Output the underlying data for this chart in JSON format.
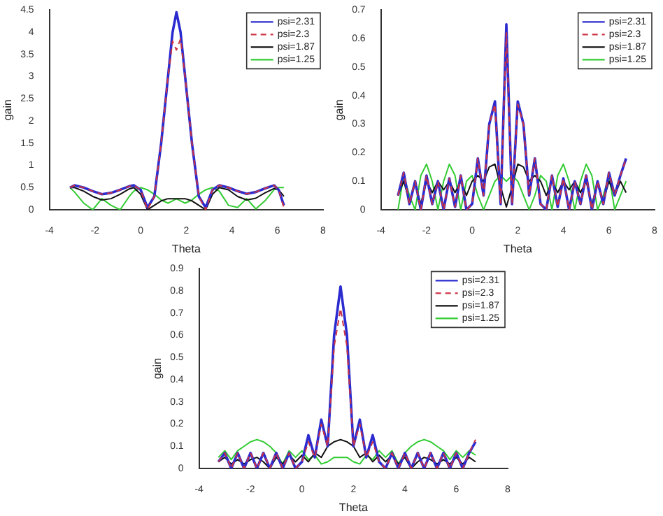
{
  "chart_data": [
    {
      "type": "line",
      "xlabel": "Theta",
      "ylabel": "gain",
      "legend": "top right",
      "grid": false,
      "x": [
        -3.1,
        -2.9,
        -2.5,
        -2.1,
        -1.7,
        -1.3,
        -0.9,
        -0.5,
        -0.3,
        0,
        0.3,
        0.6,
        0.9,
        1.2,
        1.4,
        1.57,
        1.75,
        1.95,
        2.25,
        2.55,
        2.85,
        3.15,
        3.45,
        3.85,
        4.25,
        4.65,
        5.05,
        5.45,
        5.85,
        6.05,
        6.28
      ],
      "xlim": [
        -4,
        8
      ],
      "xticks": [
        -4,
        -2,
        0,
        2,
        4,
        6,
        8
      ],
      "ylim": [
        0,
        4.5
      ],
      "yticks": [
        0,
        0.5,
        1,
        1.5,
        2,
        2.5,
        3,
        3.5,
        4,
        4.5
      ],
      "series": [
        {
          "name": "psi=2.31",
          "color": "#2b2bd0",
          "values": [
            0.5,
            0.55,
            0.5,
            0.42,
            0.35,
            0.38,
            0.45,
            0.53,
            0.55,
            0.45,
            0.05,
            0.3,
            1.5,
            3.0,
            4.0,
            4.45,
            4.0,
            3.0,
            1.5,
            0.3,
            0.05,
            0.45,
            0.55,
            0.5,
            0.42,
            0.36,
            0.4,
            0.48,
            0.55,
            0.45,
            0.1
          ]
        },
        {
          "name": "psi=2.3",
          "color": "#cc3344",
          "line_style": "dashed",
          "values": [
            0.5,
            0.55,
            0.5,
            0.42,
            0.35,
            0.38,
            0.45,
            0.53,
            0.55,
            0.45,
            0,
            0.3,
            1.5,
            3.0,
            3.8,
            3.6,
            3.85,
            3.0,
            1.5,
            0.3,
            0,
            0.45,
            0.55,
            0.5,
            0.42,
            0.36,
            0.4,
            0.48,
            0.55,
            0.45,
            0.05
          ]
        },
        {
          "name": "psi=1.87",
          "color": "#111111",
          "values": [
            0.5,
            0.5,
            0.42,
            0.3,
            0.22,
            0.25,
            0.35,
            0.47,
            0.5,
            0.35,
            0,
            0.1,
            0.2,
            0.25,
            0.25,
            0.25,
            0.25,
            0.25,
            0.2,
            0.1,
            0,
            0.35,
            0.5,
            0.45,
            0.3,
            0.22,
            0.26,
            0.38,
            0.48,
            0.45,
            0.3
          ]
        },
        {
          "name": "psi=1.25",
          "color": "#33cc33",
          "values": [
            0.5,
            0.4,
            0.15,
            0,
            0.25,
            0.1,
            0,
            0.3,
            0.42,
            0.5,
            0.45,
            0.35,
            0.22,
            0.15,
            0.2,
            0.25,
            0.2,
            0.15,
            0.22,
            0.35,
            0.45,
            0.5,
            0.42,
            0.1,
            0.05,
            0.25,
            0.02,
            0.2,
            0.45,
            0.5,
            0.5
          ]
        }
      ]
    },
    {
      "type": "line",
      "xlabel": "Theta",
      "ylabel": "gain",
      "legend": "top right",
      "grid": false,
      "x": [
        -3.25,
        -3,
        -2.75,
        -2.5,
        -2.25,
        -2,
        -1.75,
        -1.5,
        -1.25,
        -1,
        -0.75,
        -0.5,
        -0.25,
        0,
        0.25,
        0.5,
        0.75,
        1,
        1.25,
        1.5,
        1.75,
        2,
        2.25,
        2.5,
        2.75,
        3,
        3.25,
        3.5,
        3.75,
        4,
        4.25,
        4.5,
        4.75,
        5,
        5.25,
        5.5,
        5.75,
        6,
        6.25,
        6.5,
        6.75
      ],
      "xlim": [
        -4,
        8
      ],
      "xticks": [
        -4,
        -2,
        0,
        2,
        4,
        6,
        8
      ],
      "ylim": [
        0,
        0.7
      ],
      "yticks": [
        0,
        0.1,
        0.2,
        0.3,
        0.4,
        0.5,
        0.6,
        0.7
      ],
      "series": [
        {
          "name": "psi=2.31",
          "color": "#2b2bd0",
          "values": [
            0.05,
            0.13,
            0.02,
            0.1,
            0,
            0.12,
            0.02,
            0.1,
            0,
            0.11,
            0.01,
            0.12,
            0,
            0.02,
            0.18,
            0.05,
            0.3,
            0.38,
            0.02,
            0.65,
            0.02,
            0.38,
            0.3,
            0.05,
            0.18,
            0.02,
            0,
            0.12,
            0.01,
            0.11,
            0,
            0.1,
            0.02,
            0.12,
            0,
            0.1,
            0.02,
            0.13,
            0.05,
            0.12,
            0.18
          ]
        },
        {
          "name": "psi=2.3",
          "color": "#cc3344",
          "line_style": "dashed",
          "values": [
            0.05,
            0.13,
            0.02,
            0.1,
            0,
            0.12,
            0.02,
            0.1,
            0,
            0.11,
            0.01,
            0.12,
            0,
            0.02,
            0.18,
            0.05,
            0.3,
            0.37,
            0.02,
            0.62,
            0.02,
            0.37,
            0.3,
            0.05,
            0.18,
            0.02,
            0,
            0.12,
            0.01,
            0.11,
            0,
            0.1,
            0.02,
            0.12,
            0,
            0.1,
            0.02,
            0.13,
            0.05,
            0.12,
            0.18
          ]
        },
        {
          "name": "psi=1.87",
          "color": "#111111",
          "values": [
            0.05,
            0.1,
            0.03,
            0.09,
            0.02,
            0.1,
            0.06,
            0.1,
            0.07,
            0.1,
            0.06,
            0.1,
            0.05,
            0.1,
            0.12,
            0.1,
            0.15,
            0.16,
            0.08,
            0.01,
            0.08,
            0.16,
            0.15,
            0.1,
            0.12,
            0.1,
            0.05,
            0.1,
            0.06,
            0.1,
            0.07,
            0.1,
            0.06,
            0.1,
            0.02,
            0.09,
            0.03,
            0.1,
            0.05,
            0.1,
            0.06
          ]
        },
        {
          "name": "psi=1.25",
          "color": "#33cc33",
          "values": [
            0,
            0.12,
            0.05,
            0,
            0.12,
            0.16,
            0.1,
            0,
            0.1,
            0.16,
            0.12,
            0,
            0.1,
            0.12,
            0.05,
            0,
            0.05,
            0.1,
            0.12,
            0.1,
            0.12,
            0.1,
            0.05,
            0,
            0.05,
            0.12,
            0.1,
            0,
            0.12,
            0.16,
            0.1,
            0,
            0.1,
            0.16,
            0.12,
            0,
            0.05,
            0.12,
            0,
            0.05,
            0.1
          ]
        }
      ]
    },
    {
      "type": "line",
      "xlabel": "Theta",
      "ylabel": "gain",
      "legend": "top right",
      "grid": false,
      "x": [
        -3.25,
        -3,
        -2.75,
        -2.5,
        -2.25,
        -2,
        -1.75,
        -1.5,
        -1.25,
        -1,
        -0.75,
        -0.5,
        -0.25,
        0,
        0.25,
        0.5,
        0.75,
        1,
        1.25,
        1.5,
        1.75,
        2,
        2.25,
        2.5,
        2.75,
        3,
        3.25,
        3.5,
        3.75,
        4,
        4.25,
        4.5,
        4.75,
        5,
        5.25,
        5.5,
        5.75,
        6,
        6.25,
        6.5,
        6.75
      ],
      "xlim": [
        -4,
        8
      ],
      "xticks": [
        -4,
        -2,
        0,
        2,
        4,
        6,
        8
      ],
      "ylim": [
        0,
        0.9
      ],
      "yticks": [
        0,
        0.1,
        0.2,
        0.3,
        0.4,
        0.5,
        0.6,
        0.7,
        0.8,
        0.9
      ],
      "series": [
        {
          "name": "psi=2.31",
          "color": "#2b2bd0",
          "values": [
            0.03,
            0.07,
            0,
            0.07,
            0,
            0.07,
            0,
            0.07,
            0,
            0.07,
            0,
            0.07,
            0,
            0.03,
            0.15,
            0.05,
            0.22,
            0.1,
            0.6,
            0.82,
            0.6,
            0.1,
            0.22,
            0.05,
            0.15,
            0.03,
            0,
            0.07,
            0,
            0.07,
            0,
            0.07,
            0,
            0.07,
            0,
            0.07,
            0,
            0.07,
            0,
            0.07,
            0.12
          ]
        },
        {
          "name": "psi=2.3",
          "color": "#cc3344",
          "line_style": "dashed",
          "values": [
            0.03,
            0.07,
            0,
            0.07,
            0,
            0.07,
            0,
            0.07,
            0,
            0.07,
            0,
            0.07,
            0,
            0.03,
            0.12,
            0.05,
            0.2,
            0.1,
            0.55,
            0.72,
            0.55,
            0.1,
            0.2,
            0.05,
            0.12,
            0.03,
            0,
            0.07,
            0,
            0.07,
            0,
            0.07,
            0,
            0.07,
            0,
            0.07,
            0,
            0.07,
            0,
            0.07,
            0.13
          ]
        },
        {
          "name": "psi=1.87",
          "color": "#111111",
          "values": [
            0.03,
            0.05,
            0.02,
            0.04,
            0.02,
            0.04,
            0.05,
            0.03,
            0,
            0.05,
            0.02,
            0.06,
            0.03,
            0.06,
            0.03,
            0.07,
            0.05,
            0.1,
            0.12,
            0.13,
            0.12,
            0.1,
            0.05,
            0.07,
            0.03,
            0.06,
            0.03,
            0.06,
            0.02,
            0.05,
            0,
            0.03,
            0.05,
            0.04,
            0.02,
            0.04,
            0.02,
            0.05,
            0.02,
            0.05,
            0.03
          ]
        },
        {
          "name": "psi=1.25",
          "color": "#33cc33",
          "values": [
            0.05,
            0.08,
            0.04,
            0.08,
            0.1,
            0.12,
            0.13,
            0.12,
            0.1,
            0.07,
            0.02,
            0.08,
            0.05,
            0.08,
            0.04,
            0.06,
            0.02,
            0.03,
            0.05,
            0.05,
            0.05,
            0.03,
            0.02,
            0.06,
            0.04,
            0.08,
            0.05,
            0.08,
            0.02,
            0.07,
            0.1,
            0.12,
            0.13,
            0.12,
            0.1,
            0.08,
            0.04,
            0.08,
            0.05,
            0.08,
            0.06
          ]
        }
      ]
    }
  ]
}
